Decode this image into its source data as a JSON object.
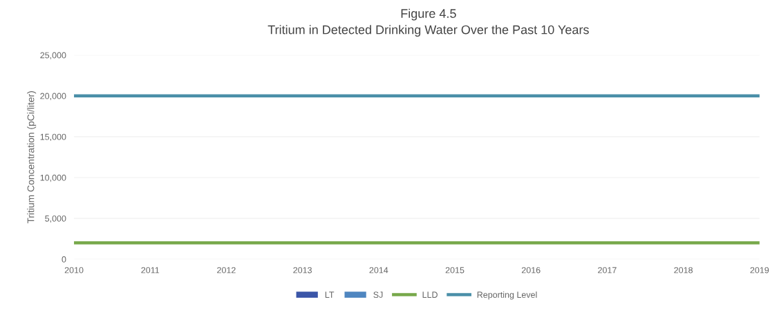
{
  "chart_data": {
    "type": "line",
    "title": "Figure 4.5",
    "subtitle": "Tritium in Detected Drinking Water Over the Past 10 Years",
    "ylabel": "Tritium Concentration (pCi/liter)",
    "categories": [
      "2010",
      "2011",
      "2012",
      "2013",
      "2014",
      "2015",
      "2016",
      "2017",
      "2018",
      "2019"
    ],
    "series": [
      {
        "name": "LT",
        "type": "bar",
        "color": "#3b56a8",
        "values": [
          null,
          null,
          null,
          null,
          null,
          null,
          null,
          null,
          null,
          null
        ]
      },
      {
        "name": "SJ",
        "type": "bar",
        "color": "#4f86c0",
        "values": [
          null,
          null,
          null,
          null,
          null,
          null,
          null,
          null,
          null,
          null
        ]
      },
      {
        "name": "LLD",
        "color": "#77a84a",
        "values": [
          2000,
          2000,
          2000,
          2000,
          2000,
          2000,
          2000,
          2000,
          2000,
          2000
        ]
      },
      {
        "name": "Reporting Level",
        "color": "#4a8fa8",
        "values": [
          20000,
          20000,
          20000,
          20000,
          20000,
          20000,
          20000,
          20000,
          20000,
          20000
        ]
      }
    ],
    "ylim": [
      0,
      25000
    ],
    "yticks": [
      {
        "value": 0,
        "label": "0"
      },
      {
        "value": 5000,
        "label": "5,000"
      },
      {
        "value": 10000,
        "label": "10,000"
      },
      {
        "value": 15000,
        "label": "15,000"
      },
      {
        "value": 20000,
        "label": "20,000"
      },
      {
        "value": 25000,
        "label": "25,000"
      }
    ],
    "grid": "y",
    "legend": "bottom"
  }
}
